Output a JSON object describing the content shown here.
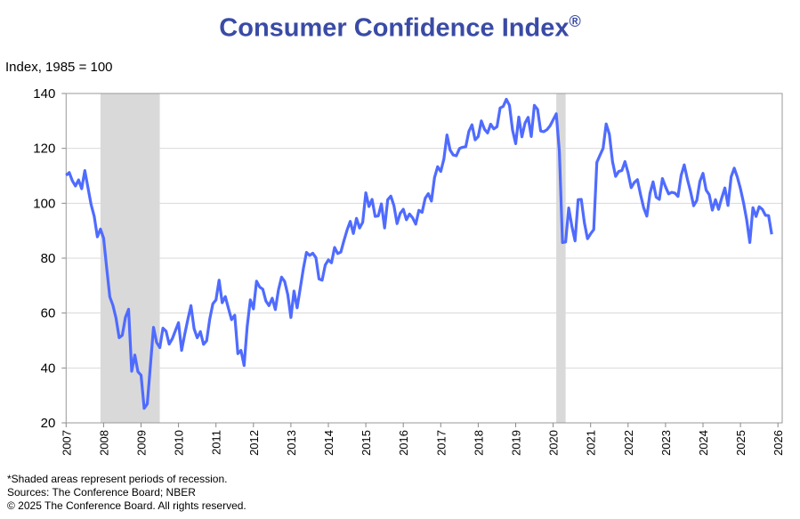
{
  "chart_data": {
    "type": "line",
    "title": "Consumer Confidence Index",
    "title_mark": "®",
    "ylabel": "Index, 1985 = 100",
    "xlabel": "",
    "ylim": [
      20,
      140
    ],
    "yticks": [
      20,
      40,
      60,
      80,
      100,
      120,
      140
    ],
    "xlim": [
      2007,
      2026
    ],
    "xticks": [
      "2007",
      "2008",
      "2009",
      "2010",
      "2011",
      "2012",
      "2013",
      "2014",
      "2015",
      "2016",
      "2017",
      "2018",
      "2019",
      "2020",
      "2021",
      "2022",
      "2023",
      "2024",
      "2025",
      "2026"
    ],
    "grid": true,
    "line_color": "#4f6bff",
    "recession_color": "#d9d9d9",
    "recessions": [
      [
        "2007-12",
        "2009-06"
      ],
      [
        "2020-02",
        "2020-04"
      ]
    ],
    "frequency": "monthly",
    "monthly_values_by_year": {
      "2007": [
        110.2,
        111.2,
        108.2,
        106.3,
        108.5,
        105.3,
        111.9,
        105.6,
        99.5,
        95.2,
        87.8,
        90.6
      ],
      "2008": [
        87.3,
        76.4,
        65.9,
        62.8,
        58.1,
        51.0,
        51.9,
        58.5,
        61.4,
        38.8,
        44.7,
        38.6
      ],
      "2009": [
        37.4,
        25.3,
        26.9,
        40.8,
        54.8,
        49.3,
        47.4,
        54.5,
        53.4,
        48.7,
        50.6,
        53.6
      ],
      "2010": [
        56.5,
        46.4,
        52.3,
        57.7,
        62.7,
        54.3,
        51.0,
        53.2,
        48.6,
        49.9,
        57.8,
        63.4
      ],
      "2011": [
        64.8,
        72.0,
        63.8,
        66.0,
        61.7,
        57.6,
        59.2,
        45.2,
        46.4,
        40.9,
        55.2,
        64.8
      ],
      "2012": [
        61.5,
        71.6,
        69.5,
        68.7,
        64.4,
        62.7,
        65.4,
        61.3,
        68.4,
        73.1,
        71.5,
        66.7
      ],
      "2013": [
        58.4,
        68.0,
        61.9,
        69.0,
        76.2,
        82.1,
        81.0,
        81.8,
        80.2,
        72.4,
        72.0,
        77.5
      ],
      "2014": [
        79.4,
        78.3,
        83.9,
        81.7,
        82.2,
        86.4,
        90.3,
        93.4,
        89.0,
        94.5,
        91.0,
        93.1
      ],
      "2015": [
        103.8,
        98.8,
        101.4,
        95.2,
        95.4,
        99.8,
        91.0,
        101.3,
        102.6,
        99.1,
        92.6,
        96.3
      ],
      "2016": [
        97.8,
        94.0,
        96.1,
        94.7,
        92.4,
        97.4,
        96.7,
        101.8,
        103.5,
        100.8,
        109.4,
        113.3
      ],
      "2017": [
        111.6,
        116.1,
        124.9,
        119.4,
        117.6,
        117.3,
        120.0,
        120.4,
        120.6,
        126.2,
        128.6,
        123.1
      ],
      "2018": [
        124.3,
        130.0,
        127.0,
        125.6,
        128.8,
        127.1,
        127.9,
        134.7,
        135.3,
        137.9,
        135.7,
        126.6
      ],
      "2019": [
        121.7,
        131.4,
        124.2,
        129.2,
        131.3,
        124.3,
        135.7,
        134.2,
        126.3,
        126.1,
        126.8,
        128.2
      ],
      "2020": [
        130.4,
        132.6,
        118.8,
        85.7,
        85.9,
        98.3,
        91.7,
        86.3,
        101.3,
        101.4,
        92.9,
        87.1
      ],
      "2021": [
        88.9,
        90.4,
        114.9,
        117.5,
        120.0,
        128.9,
        125.1,
        115.2,
        109.8,
        111.6,
        111.9,
        115.2
      ],
      "2022": [
        111.1,
        105.7,
        107.6,
        108.6,
        103.2,
        98.4,
        95.3,
        103.6,
        107.8,
        102.2,
        101.4,
        109.0
      ],
      "2023": [
        106.0,
        103.4,
        104.0,
        103.7,
        102.5,
        110.1,
        114.0,
        108.7,
        104.3,
        99.1,
        101.0,
        108.0
      ],
      "2024": [
        110.9,
        104.8,
        103.1,
        97.5,
        101.3,
        97.8,
        101.9,
        105.6,
        99.2,
        109.6,
        112.8,
        109.5
      ],
      "2025": [
        105.3,
        100.1,
        93.9,
        85.7,
        98.4,
        95.2,
        98.7,
        97.8,
        95.6,
        95.5,
        88.7
      ]
    }
  },
  "footer": {
    "note": "*Shaded areas represent periods of recession.",
    "sources": "Sources:  The Conference Board;  NBER",
    "copyright": "© 2025 The Conference Board. All rights reserved."
  }
}
